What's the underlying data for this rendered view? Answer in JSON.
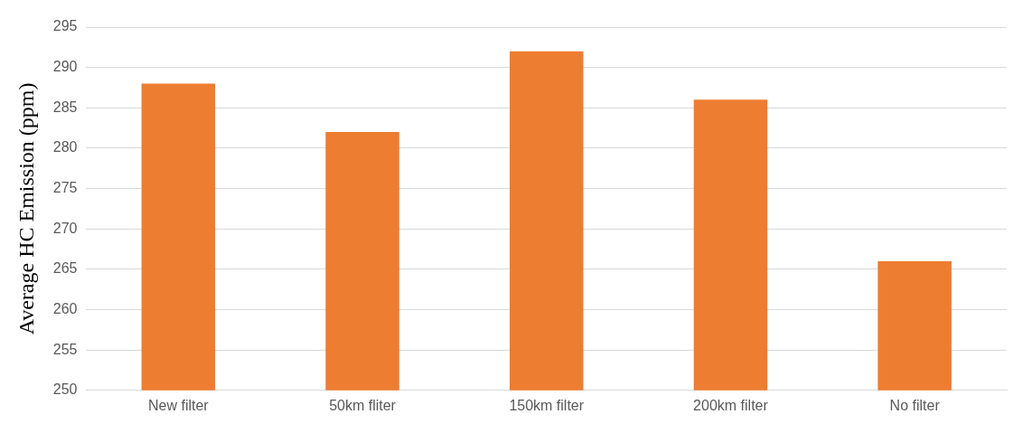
{
  "chart_data": {
    "type": "bar",
    "ylabel": "Average HC Emission (ppm)",
    "categories": [
      "New filter",
      "50km fliter",
      "150km filter",
      "200km filter",
      "No filter"
    ],
    "values": [
      288,
      282,
      292,
      286,
      266
    ],
    "color": "#ed7d31",
    "ylim": [
      250,
      295
    ],
    "yticks": [
      250,
      255,
      260,
      265,
      270,
      275,
      280,
      285,
      290,
      295
    ],
    "grid": "y"
  }
}
